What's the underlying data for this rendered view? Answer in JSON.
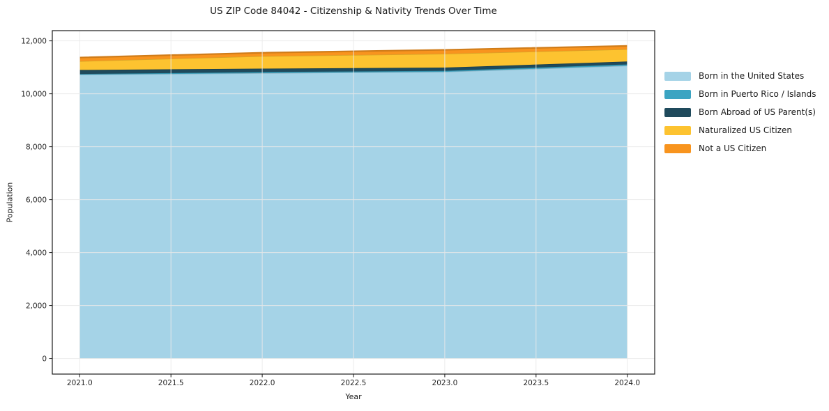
{
  "title": "US ZIP Code 84042 - Citizenship & Nativity Trends Over Time",
  "chart_data": {
    "type": "area",
    "stacked": true,
    "title": "US ZIP Code 84042 - Citizenship & Nativity Trends Over Time",
    "xlabel": "Year",
    "ylabel": "Population",
    "x": [
      2021,
      2022,
      2023,
      2024
    ],
    "series": [
      {
        "name": "Born in the United States",
        "color": "#a5d3e7",
        "values": [
          10720,
          10780,
          10830,
          11060
        ]
      },
      {
        "name": "Born in Puerto Rico / Islands",
        "color": "#3ba4c2",
        "values": [
          30,
          40,
          40,
          50
        ]
      },
      {
        "name": "Born Abroad of US Parent(s)",
        "color": "#1f4a5c",
        "values": [
          150,
          130,
          120,
          110
        ]
      },
      {
        "name": "Naturalized US Citizen",
        "color": "#fdc330",
        "values": [
          330,
          470,
          520,
          460
        ]
      },
      {
        "name": "Not a US Citizen",
        "color": "#f8941e",
        "values": [
          140,
          130,
          150,
          130
        ]
      }
    ],
    "totals": [
      11370,
      11550,
      11660,
      11810
    ],
    "x_ticks": [
      2021.0,
      2021.5,
      2022.0,
      2022.5,
      2023.0,
      2023.5,
      2024.0
    ],
    "x_tick_labels": [
      "2021.0",
      "2021.5",
      "2022.0",
      "2022.5",
      "2023.0",
      "2023.5",
      "2024.0"
    ],
    "y_ticks": [
      0,
      2000,
      4000,
      6000,
      8000,
      10000,
      12000
    ],
    "y_tick_labels": [
      "0",
      "2,000",
      "4,000",
      "6,000",
      "8,000",
      "10,000",
      "12,000"
    ],
    "xlim": [
      2020.85,
      2024.15
    ],
    "ylim": [
      -590,
      12385
    ],
    "grid": true,
    "legend_position": "right-outside"
  },
  "colors": {
    "background": "#ffffff",
    "grid": "#e9e9e9",
    "spine": "#1a1a1a",
    "tick_text": "#262626"
  }
}
